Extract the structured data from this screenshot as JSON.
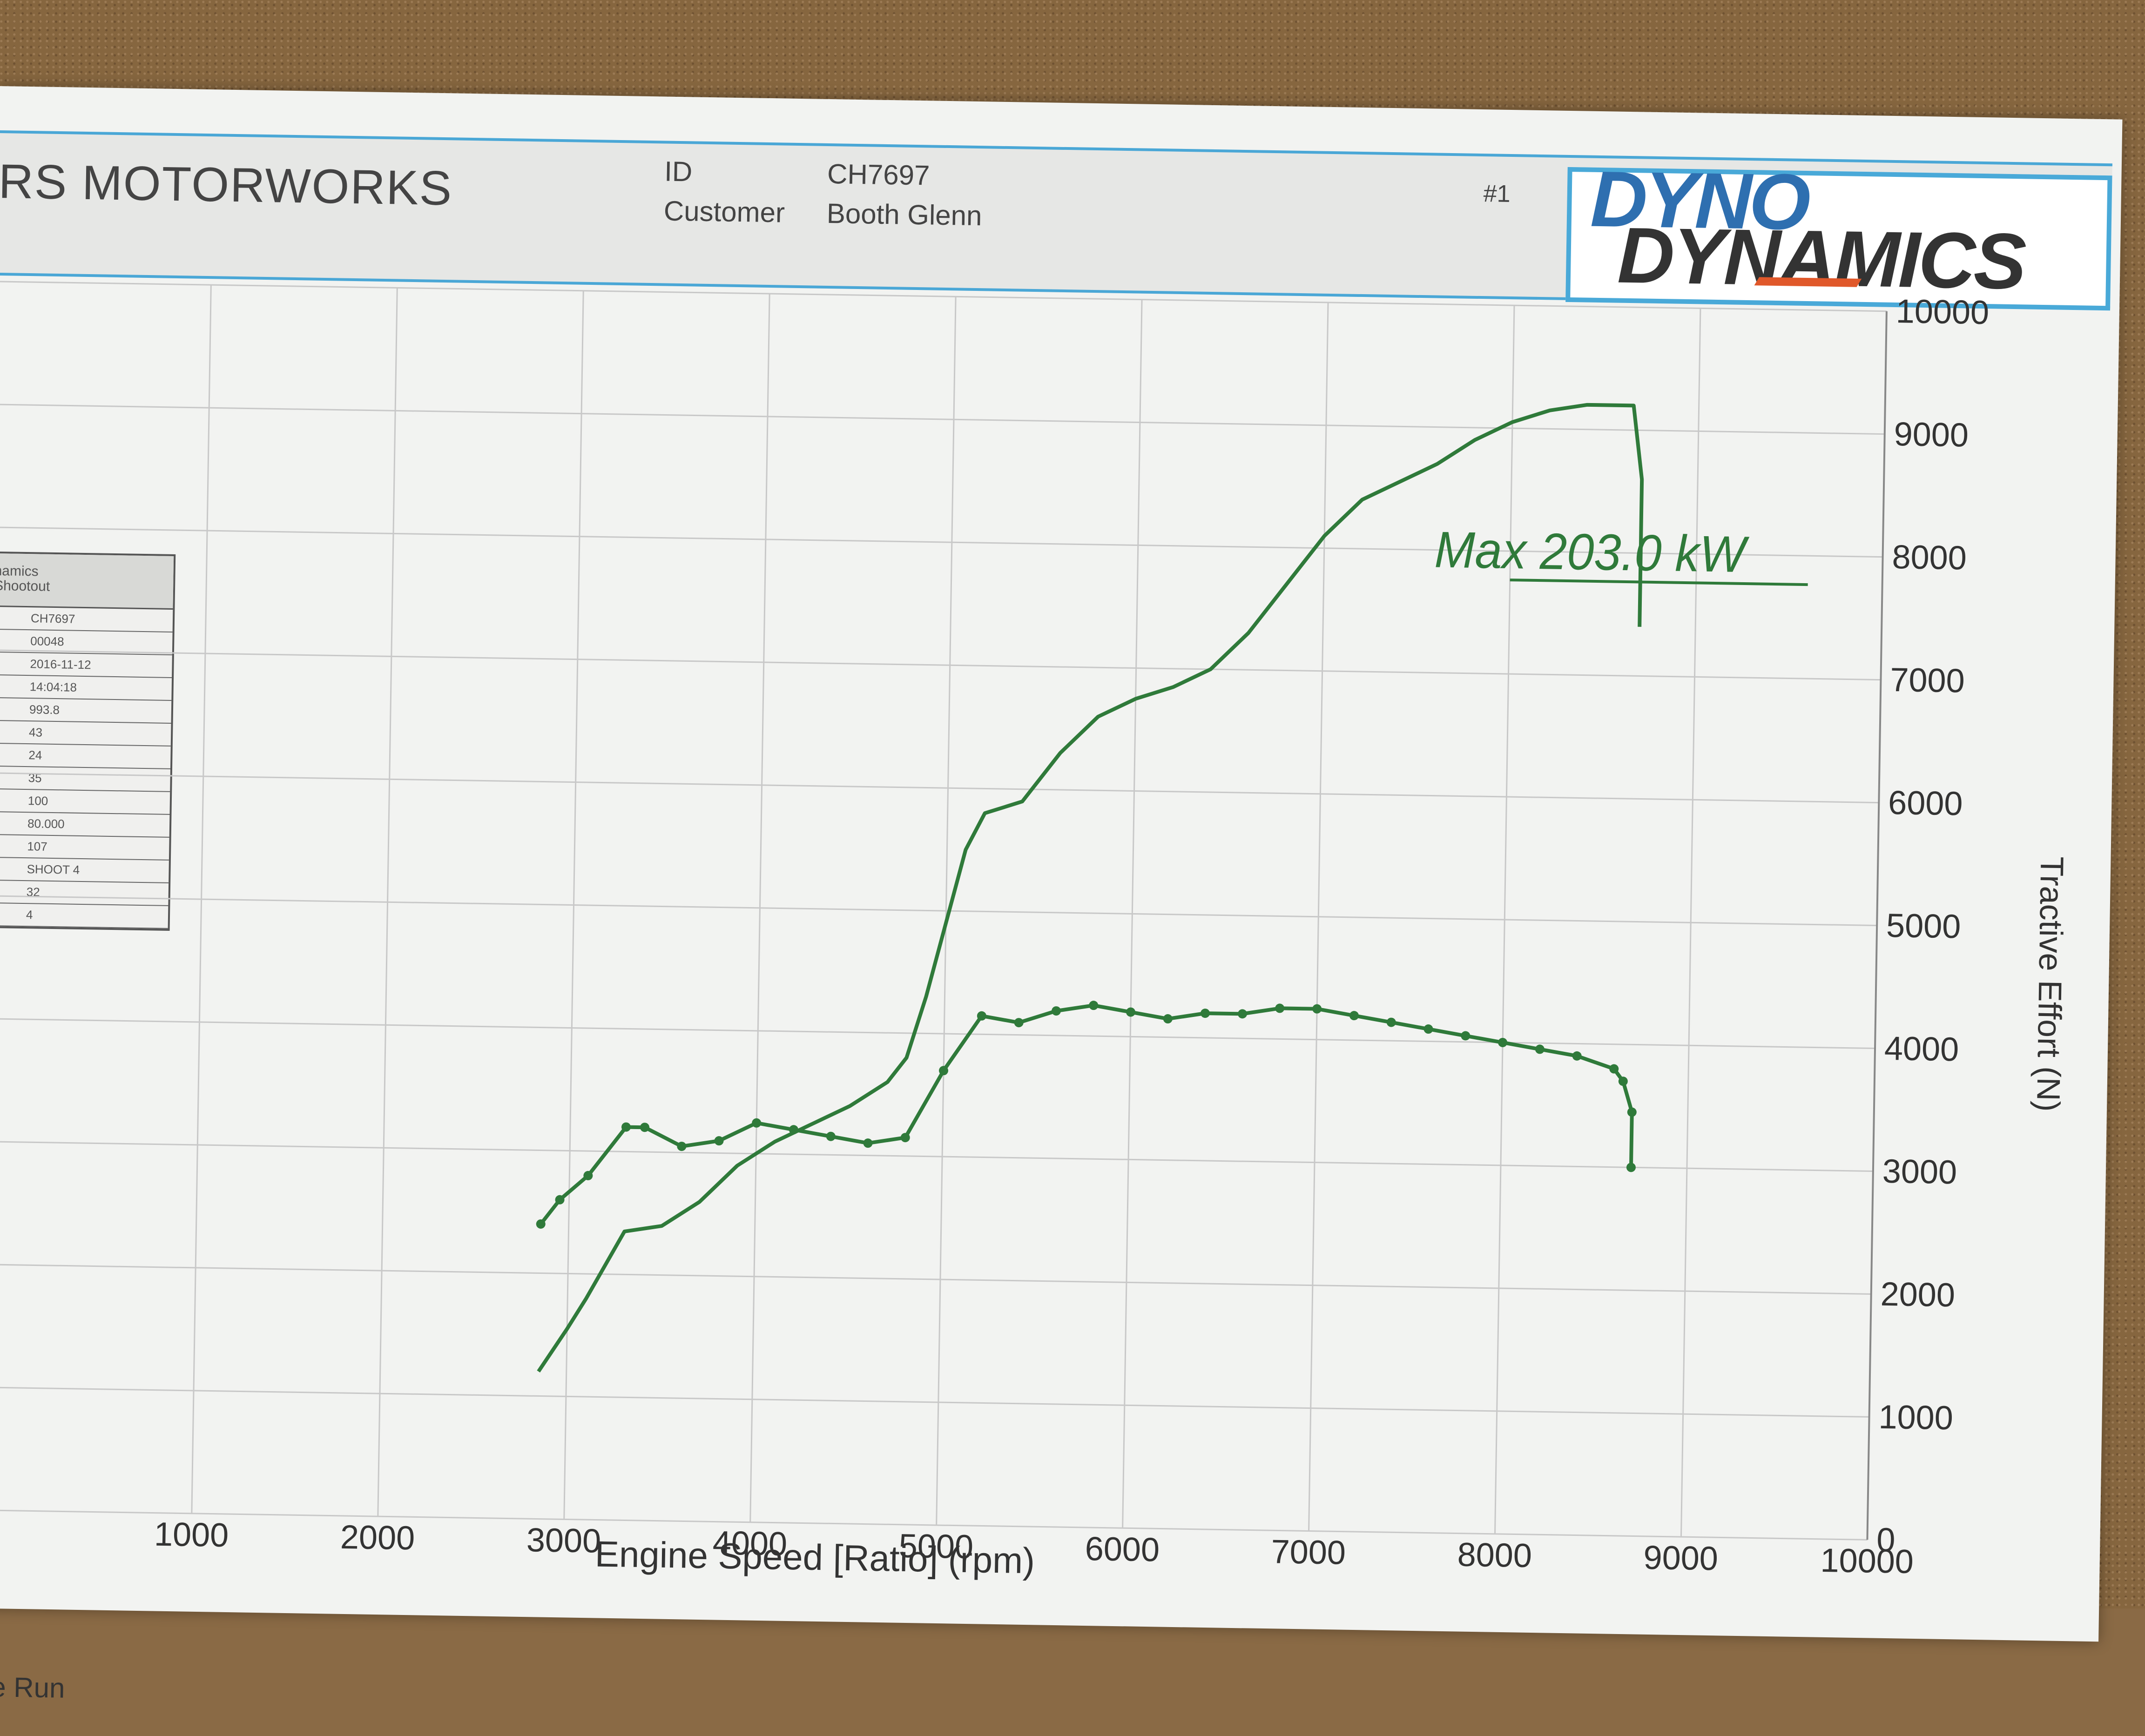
{
  "header": {
    "company": "RS MOTORWORKS",
    "id_label": "ID",
    "id_value": "CH7697",
    "customer_label": "Customer",
    "customer_value": "Booth Glenn",
    "run_number": "#1",
    "logo_line1": "DYNO",
    "logo_line2": "DYNAMICS"
  },
  "legend": {
    "title_line1": "namics",
    "title_line2": "Shootout",
    "rows": [
      "CH7697",
      "00048",
      "2016-11-12",
      "14:04:18",
      "993.8",
      "43",
      "24",
      "35",
      "100",
      "80.000",
      "107",
      "SHOOT 4",
      "32",
      "4"
    ]
  },
  "annotation": {
    "text": "Max 203.0 kW"
  },
  "footer": {
    "text": "ne Run"
  },
  "colors": {
    "curve": "#2f7a3a",
    "grid": "#c8c8c8",
    "header_border": "#4aa7d6"
  },
  "chart_data": {
    "type": "line",
    "title": "",
    "xlabel": "Engine Speed [Ratio] (rpm)",
    "ylabel": "Tractive Effort (N)",
    "xlim": [
      0,
      10000
    ],
    "ylim": [
      0,
      10000
    ],
    "x_ticks": [
      1000,
      2000,
      3000,
      4000,
      5000,
      6000,
      7000,
      8000,
      9000,
      10000
    ],
    "y_ticks": [
      0,
      1000,
      2000,
      3000,
      4000,
      5000,
      6000,
      7000,
      8000,
      9000,
      10000
    ],
    "grid": true,
    "series": [
      {
        "points": [
          [
            2850,
            1200
          ],
          [
            3000,
            1550
          ],
          [
            3100,
            1800
          ],
          [
            3300,
            2350
          ],
          [
            3500,
            2400
          ],
          [
            3700,
            2600
          ],
          [
            3900,
            2900
          ],
          [
            4100,
            3100
          ],
          [
            4300,
            3250
          ],
          [
            4500,
            3400
          ],
          [
            4700,
            3600
          ],
          [
            4800,
            3800
          ],
          [
            4900,
            4300
          ],
          [
            5000,
            4900
          ],
          [
            5100,
            5500
          ],
          [
            5200,
            5800
          ],
          [
            5400,
            5900
          ],
          [
            5600,
            6300
          ],
          [
            5800,
            6600
          ],
          [
            6000,
            6750
          ],
          [
            6200,
            6850
          ],
          [
            6400,
            7000
          ],
          [
            6600,
            7300
          ],
          [
            6800,
            7700
          ],
          [
            7000,
            8100
          ],
          [
            7200,
            8400
          ],
          [
            7400,
            8550
          ],
          [
            7600,
            8700
          ],
          [
            7800,
            8900
          ],
          [
            8000,
            9050
          ],
          [
            8200,
            9150
          ],
          [
            8400,
            9200
          ],
          [
            8550,
            9200
          ],
          [
            8650,
            9200
          ],
          [
            8700,
            8600
          ],
          [
            8700,
            7400
          ]
        ]
      },
      {
        "points": [
          [
            2850,
            2400
          ],
          [
            2950,
            2600
          ],
          [
            3100,
            2800
          ],
          [
            3300,
            3200
          ],
          [
            3400,
            3200
          ],
          [
            3600,
            3050
          ],
          [
            3800,
            3100
          ],
          [
            4000,
            3250
          ],
          [
            4200,
            3200
          ],
          [
            4400,
            3150
          ],
          [
            4600,
            3100
          ],
          [
            4800,
            3150
          ],
          [
            5000,
            3700
          ],
          [
            5200,
            4150
          ],
          [
            5400,
            4100
          ],
          [
            5600,
            4200
          ],
          [
            5800,
            4250
          ],
          [
            6000,
            4200
          ],
          [
            6200,
            4150
          ],
          [
            6400,
            4200
          ],
          [
            6600,
            4200
          ],
          [
            6800,
            4250
          ],
          [
            7000,
            4250
          ],
          [
            7200,
            4200
          ],
          [
            7400,
            4150
          ],
          [
            7600,
            4100
          ],
          [
            7800,
            4050
          ],
          [
            8000,
            4000
          ],
          [
            8200,
            3950
          ],
          [
            8400,
            3900
          ],
          [
            8600,
            3800
          ],
          [
            8650,
            3700
          ],
          [
            8700,
            3450
          ],
          [
            8700,
            3000
          ]
        ]
      }
    ]
  }
}
